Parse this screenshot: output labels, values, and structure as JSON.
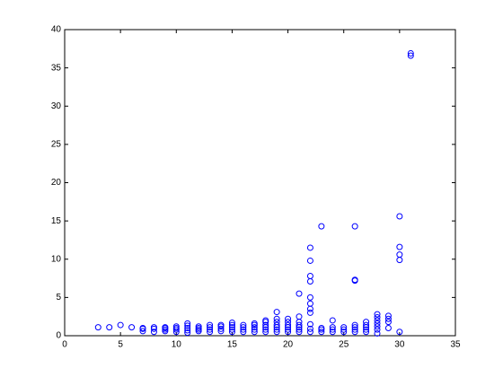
{
  "chart_data": {
    "type": "scatter",
    "color": "#0000ff",
    "x": [
      3,
      4,
      5,
      6,
      7,
      7,
      7,
      8,
      8,
      8,
      9,
      9,
      9,
      9,
      10,
      10,
      10,
      10,
      11,
      11,
      11,
      11,
      11,
      12,
      12,
      12,
      12,
      13,
      13,
      13,
      13,
      14,
      14,
      14,
      14,
      15,
      15,
      15,
      15,
      15,
      16,
      16,
      16,
      16,
      17,
      17,
      17,
      17,
      17,
      18,
      18,
      18,
      18,
      18,
      18,
      19,
      19,
      19,
      19,
      19,
      19,
      19,
      20,
      20,
      20,
      20,
      20,
      20,
      21,
      21,
      21,
      21,
      21,
      21,
      21,
      22,
      22,
      22,
      22,
      22,
      22,
      22,
      22,
      22,
      22,
      22,
      23,
      23,
      23,
      23,
      24,
      24,
      24,
      24,
      25,
      25,
      25,
      26,
      26,
      26,
      26,
      26,
      26,
      26,
      27,
      27,
      27,
      27,
      27,
      28,
      28,
      28,
      28,
      28,
      28,
      28,
      29,
      29,
      29,
      29,
      30,
      30,
      30,
      30,
      30,
      31,
      31
    ],
    "y": [
      1.1,
      1.1,
      1.4,
      1.1,
      0.6,
      0.9,
      1.0,
      0.5,
      0.9,
      1.1,
      0.6,
      0.8,
      1.0,
      1.1,
      0.5,
      0.8,
      1.0,
      1.2,
      0.4,
      0.7,
      1.0,
      1.3,
      1.6,
      0.6,
      0.8,
      1.0,
      1.2,
      0.5,
      0.8,
      1.1,
      1.4,
      0.6,
      0.9,
      1.2,
      1.4,
      0.5,
      0.8,
      1.1,
      1.4,
      1.7,
      0.5,
      0.8,
      1.1,
      1.4,
      0.5,
      0.8,
      1.1,
      1.4,
      1.6,
      0.5,
      0.8,
      1.1,
      1.4,
      1.8,
      2.0,
      0.5,
      0.8,
      1.1,
      1.4,
      1.8,
      2.2,
      3.1,
      0.5,
      0.8,
      1.1,
      1.4,
      1.8,
      2.2,
      0.5,
      0.8,
      1.1,
      1.4,
      1.8,
      2.5,
      5.5,
      0.5,
      0.9,
      1.5,
      3.0,
      3.5,
      4.2,
      5.0,
      7.1,
      7.8,
      9.8,
      11.5,
      0.5,
      0.8,
      1.0,
      14.3,
      0.5,
      0.8,
      1.1,
      2.0,
      0.5,
      0.8,
      1.1,
      0.5,
      0.8,
      1.1,
      1.4,
      7.2,
      7.3,
      14.3,
      0.5,
      0.8,
      1.1,
      1.4,
      1.8,
      0.3,
      0.8,
      1.2,
      1.6,
      2.0,
      2.4,
      2.8,
      1.0,
      1.8,
      2.2,
      2.6,
      0.5,
      9.9,
      10.6,
      11.6,
      15.6,
      36.6,
      36.9
    ],
    "xlim": [
      0,
      35
    ],
    "xticks": [
      0,
      5,
      10,
      15,
      20,
      25,
      30,
      35
    ],
    "ylim": [
      0,
      40
    ],
    "yticks": [
      0,
      5,
      10,
      15,
      20,
      25,
      30,
      35,
      40
    ]
  }
}
